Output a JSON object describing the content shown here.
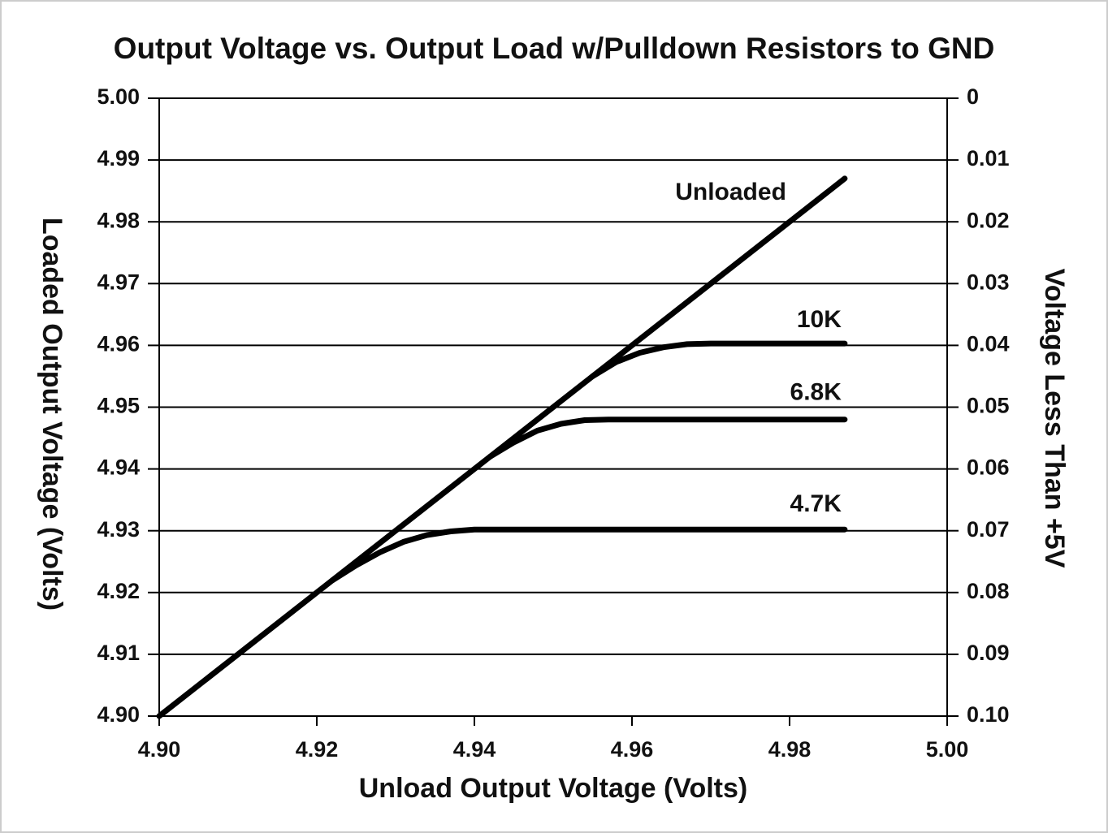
{
  "chart_data": {
    "type": "line",
    "title": "Output Voltage vs. Output Load w/Pulldown Resistors to GND",
    "x_label": "Unload Output Voltage (Volts)",
    "y_label": "Loaded Output Voltage (Volts)",
    "y2_label": "Voltage Less Than +5V",
    "xlim": [
      4.9,
      5.0
    ],
    "xticks": [
      {
        "value": 4.9,
        "label": "4.90"
      },
      4.92,
      4.94,
      4.96,
      4.98,
      {
        "value": 5.0,
        "label": "5.00"
      }
    ],
    "ylim": [
      4.9,
      5.0
    ],
    "yticks": [
      {
        "value": 4.9,
        "label": "4.90"
      },
      4.91,
      4.92,
      4.93,
      4.94,
      4.95,
      4.96,
      4.97,
      4.98,
      4.99,
      {
        "value": 5.0,
        "label": "5.00"
      }
    ],
    "y2lim": [
      0.1,
      0
    ],
    "y2ticks": [
      {
        "value": 0.1,
        "label": "0.10"
      },
      0.09,
      0.08,
      0.07,
      0.06,
      0.05,
      0.04,
      0.03,
      0.02,
      0.01,
      0
    ],
    "grid": true,
    "series": [
      {
        "name": "Unloaded",
        "color": "#000000",
        "x": [
          4.9,
          4.987
        ],
        "values": [
          4.9,
          4.987
        ]
      },
      {
        "name": "10K",
        "color": "#000000",
        "x": [
          4.955,
          4.958,
          4.961,
          4.964,
          4.967,
          4.97,
          4.987
        ],
        "values": [
          4.955,
          4.9573,
          4.9588,
          4.9597,
          4.9602,
          4.9603,
          4.9603
        ]
      },
      {
        "name": "6.8K",
        "color": "#000000",
        "x": [
          4.942,
          4.945,
          4.948,
          4.951,
          4.954,
          4.957,
          4.987
        ],
        "values": [
          4.942,
          4.9443,
          4.9462,
          4.9473,
          4.9479,
          4.948,
          4.948
        ]
      },
      {
        "name": "4.7K",
        "color": "#000000",
        "x": [
          4.922,
          4.925,
          4.928,
          4.931,
          4.934,
          4.937,
          4.94,
          4.987
        ],
        "values": [
          4.922,
          4.9244,
          4.9265,
          4.9282,
          4.9293,
          4.9299,
          4.9302,
          4.9302
        ]
      }
    ]
  }
}
